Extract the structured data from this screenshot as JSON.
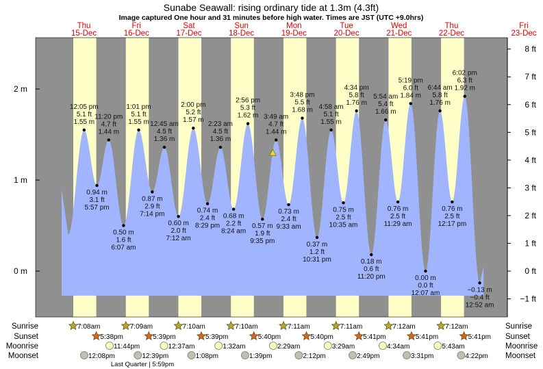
{
  "chart_data": {
    "type": "area",
    "title": "Sunabe Seawall: rising  ordinary tide at 1.3m (4.3ft)",
    "subtitle": "Image captured One hour and 31 minutes before high water. Times are JST (UTC +9.0hrs)",
    "y_left_unit": "m",
    "y_right_unit": "ft",
    "y_left_ticks": [
      "2 m",
      "1 m",
      "0 m"
    ],
    "y_left_tick_values": [
      2,
      1,
      0
    ],
    "y_right_ticks": [
      "8 ft",
      "7 ft",
      "6 ft",
      "5 ft",
      "4 ft",
      "3 ft",
      "2 ft",
      "1 ft",
      "0 ft",
      "−1 ft"
    ],
    "y_right_tick_values": [
      8,
      7,
      6,
      5,
      4,
      3,
      2,
      1,
      0,
      -1
    ],
    "ylim_m": [
      -0.5,
      2.55
    ],
    "days": [
      {
        "name": "Thu",
        "date": "15-Dec"
      },
      {
        "name": "Fri",
        "date": "16-Dec"
      },
      {
        "name": "Sat",
        "date": "17-Dec"
      },
      {
        "name": "Sun",
        "date": "18-Dec"
      },
      {
        "name": "Mon",
        "date": "19-Dec"
      },
      {
        "name": "Tue",
        "date": "20-Dec"
      },
      {
        "name": "Wed",
        "date": "21-Dec"
      },
      {
        "name": "Thu",
        "date": "22-Dec"
      },
      {
        "name": "Fri",
        "date": "23-Dec"
      }
    ],
    "extremes": [
      {
        "day": 15,
        "time": "12:05 pm",
        "m": "1.55 m",
        "ft": "5.1 ft",
        "value": 1.55,
        "type": "high"
      },
      {
        "day": 15,
        "time": "5:57 pm",
        "m": "0.94 m",
        "ft": "3.1 ft",
        "value": 0.94,
        "type": "low"
      },
      {
        "day": 15,
        "time": "11:20 pm",
        "m": "1.44 m",
        "ft": "4.7 ft",
        "value": 1.44,
        "type": "high"
      },
      {
        "day": 16,
        "time": "6:07 am",
        "m": "0.50 m",
        "ft": "1.6 ft",
        "value": 0.5,
        "type": "low"
      },
      {
        "day": 16,
        "time": "1:01 pm",
        "m": "1.55 m",
        "ft": "5.1 ft",
        "value": 1.55,
        "type": "high"
      },
      {
        "day": 16,
        "time": "7:14 pm",
        "m": "0.87 m",
        "ft": "2.9 ft",
        "value": 0.87,
        "type": "low"
      },
      {
        "day": 17,
        "time": "12:45 am",
        "m": "1.36 m",
        "ft": "4.5 ft",
        "value": 1.36,
        "type": "high"
      },
      {
        "day": 17,
        "time": "7:12 am",
        "m": "0.60 m",
        "ft": "2.0 ft",
        "value": 0.6,
        "type": "low"
      },
      {
        "day": 17,
        "time": "2:00 pm",
        "m": "1.57 m",
        "ft": "5.2 ft",
        "value": 1.57,
        "type": "high"
      },
      {
        "day": 17,
        "time": "8:29 pm",
        "m": "0.74 m",
        "ft": "2.4 ft",
        "value": 0.74,
        "type": "low"
      },
      {
        "day": 18,
        "time": "2:23 am",
        "m": "1.36 m",
        "ft": "4.5 ft",
        "value": 1.36,
        "type": "high"
      },
      {
        "day": 18,
        "time": "8:24 am",
        "m": "0.68 m",
        "ft": "2.2 ft",
        "value": 0.68,
        "type": "low"
      },
      {
        "day": 18,
        "time": "2:56 pm",
        "m": "1.62 m",
        "ft": "5.3 ft",
        "value": 1.62,
        "type": "high"
      },
      {
        "day": 18,
        "time": "9:35 pm",
        "m": "0.57 m",
        "ft": "1.9 ft",
        "value": 0.57,
        "type": "low"
      },
      {
        "day": 19,
        "time": "3:49 am",
        "m": "1.44 m",
        "ft": "4.7 ft",
        "value": 1.44,
        "type": "high"
      },
      {
        "day": 19,
        "time": "9:33 am",
        "m": "0.73 m",
        "ft": "2.4 ft",
        "value": 0.73,
        "type": "low"
      },
      {
        "day": 19,
        "time": "3:48 pm",
        "m": "1.68 m",
        "ft": "5.5 ft",
        "value": 1.68,
        "type": "high"
      },
      {
        "day": 19,
        "time": "10:31 pm",
        "m": "0.37 m",
        "ft": "1.2 ft",
        "value": 0.37,
        "type": "low"
      },
      {
        "day": 20,
        "time": "4:58 am",
        "m": "1.55 m",
        "ft": "5.1 ft",
        "value": 1.55,
        "type": "high"
      },
      {
        "day": 20,
        "time": "10:35 am",
        "m": "0.75 m",
        "ft": "2.5 ft",
        "value": 0.75,
        "type": "low"
      },
      {
        "day": 20,
        "time": "4:34 pm",
        "m": "1.76 m",
        "ft": "5.8 ft",
        "value": 1.76,
        "type": "high"
      },
      {
        "day": 20,
        "time": "11:20 pm",
        "m": "0.18 m",
        "ft": "0.6 ft",
        "value": 0.18,
        "type": "low"
      },
      {
        "day": 21,
        "time": "5:54 am",
        "m": "1.66 m",
        "ft": "5.4 ft",
        "value": 1.66,
        "type": "high"
      },
      {
        "day": 21,
        "time": "11:29 am",
        "m": "0.76 m",
        "ft": "2.5 ft",
        "value": 0.76,
        "type": "low"
      },
      {
        "day": 21,
        "time": "5:19 pm",
        "m": "1.84 m",
        "ft": "6.0 ft",
        "value": 1.84,
        "type": "high"
      },
      {
        "day": 22,
        "time": "12:07 am",
        "m": "0.00 m",
        "ft": "0.0 ft",
        "value": 0.0,
        "type": "low"
      },
      {
        "day": 22,
        "time": "6:44 am",
        "m": "1.76 m",
        "ft": "5.8 ft",
        "value": 1.76,
        "type": "high"
      },
      {
        "day": 22,
        "time": "12:17 pm",
        "m": "0.76 m",
        "ft": "2.5 ft",
        "value": 0.76,
        "type": "low"
      },
      {
        "day": 22,
        "time": "6:02 pm",
        "m": "1.92 m",
        "ft": "6.3 ft",
        "value": 1.92,
        "type": "high"
      },
      {
        "day": 23,
        "time": "12:52 am",
        "m": "−0.13 m",
        "ft": "−0.4 ft",
        "value": -0.13,
        "type": "low"
      }
    ],
    "current_marker": {
      "value_m": 1.3
    },
    "rows": {
      "sunrise_label": "Sunrise",
      "sunset_label": "Sunset",
      "moonrise_label": "Moonrise",
      "moonset_label": "Moonset"
    },
    "sunrise": [
      {
        "day": 15,
        "time": "7:08am"
      },
      {
        "day": 16,
        "time": "7:09am"
      },
      {
        "day": 17,
        "time": "7:10am"
      },
      {
        "day": 18,
        "time": "7:10am"
      },
      {
        "day": 19,
        "time": "7:11am"
      },
      {
        "day": 20,
        "time": "7:11am"
      },
      {
        "day": 21,
        "time": "7:12am"
      },
      {
        "day": 22,
        "time": "7:12am"
      }
    ],
    "sunset": [
      {
        "day": 15,
        "time": "5:38pm"
      },
      {
        "day": 16,
        "time": "5:39pm"
      },
      {
        "day": 17,
        "time": "5:39pm"
      },
      {
        "day": 18,
        "time": "5:40pm"
      },
      {
        "day": 19,
        "time": "5:40pm"
      },
      {
        "day": 20,
        "time": "5:41pm"
      },
      {
        "day": 21,
        "time": "5:41pm"
      },
      {
        "day": 22,
        "time": "5:41pm"
      }
    ],
    "moonrise": [
      {
        "day": 15,
        "time": "11:44pm"
      },
      {
        "day": 17,
        "time": "12:37am"
      },
      {
        "day": 18,
        "time": "1:32am"
      },
      {
        "day": 19,
        "time": "2:29am"
      },
      {
        "day": 20,
        "time": "3:29am"
      },
      {
        "day": 21,
        "time": "4:34am"
      },
      {
        "day": 22,
        "time": "5:43am"
      }
    ],
    "moonset": [
      {
        "day": 15,
        "time": "12:08pm"
      },
      {
        "day": 16,
        "time": "12:39pm"
      },
      {
        "day": 17,
        "time": "1:08pm"
      },
      {
        "day": 18,
        "time": "1:39pm"
      },
      {
        "day": 19,
        "time": "2:12pm"
      },
      {
        "day": 20,
        "time": "2:49pm"
      },
      {
        "day": 21,
        "time": "3:31pm"
      },
      {
        "day": 22,
        "time": "4:22pm"
      }
    ],
    "moon_phase": {
      "label": "Last Quarter | 5:59pm"
    },
    "colors": {
      "night": "#909090",
      "day": "#ffffc8",
      "water": "#a0b4ff",
      "day_label": "#dd0000",
      "sunrise": "#b0a830",
      "sunset": "#d06820",
      "moonrise": "#ffffc0",
      "moonset": "#c0c0b0"
    }
  }
}
